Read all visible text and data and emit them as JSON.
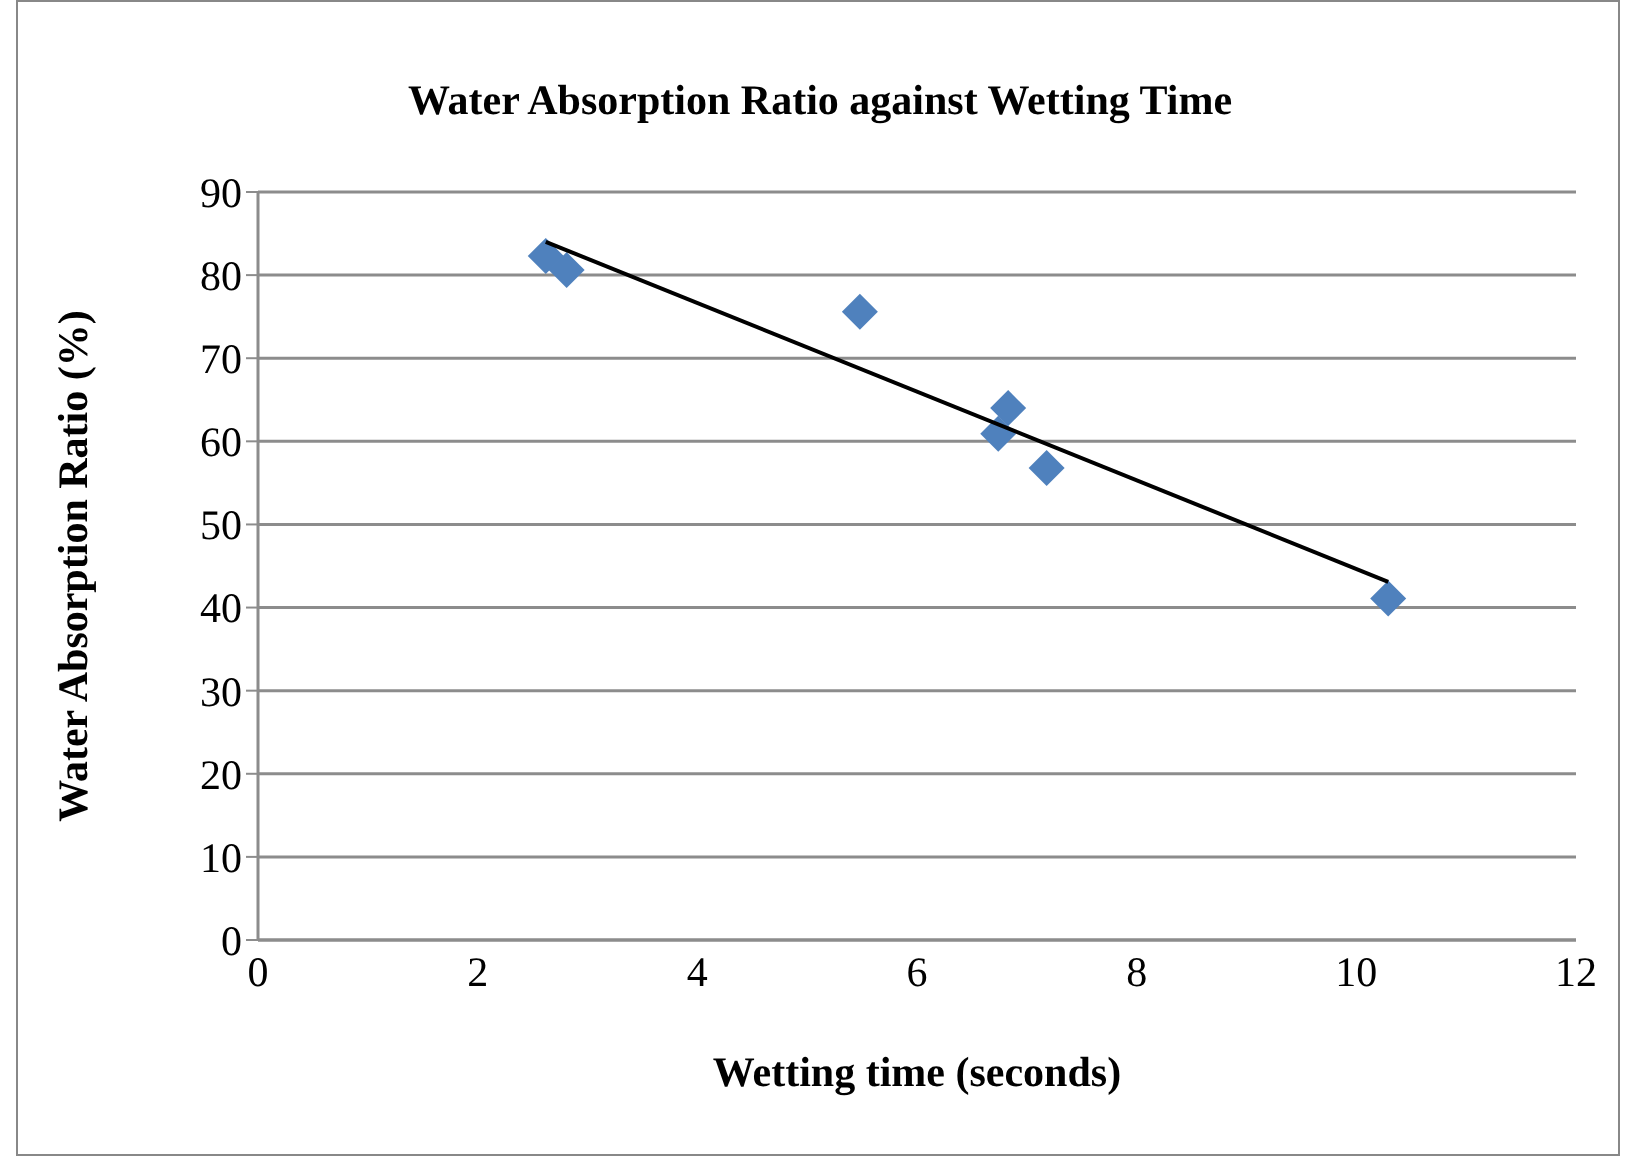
{
  "chart_data": {
    "type": "scatter",
    "title": "Water Absorption Ratio against Wetting Time",
    "xlabel": "Wetting time (seconds)",
    "ylabel": "Water Absorption Ratio (%)",
    "xlim": [
      0,
      12
    ],
    "xticks": [
      0,
      2,
      4,
      6,
      8,
      10,
      12
    ],
    "ylim": [
      0,
      90
    ],
    "yticks": [
      0,
      10,
      20,
      30,
      40,
      50,
      60,
      70,
      80,
      90
    ],
    "grid": "y",
    "legend": false,
    "series": [
      {
        "marker": "diamond",
        "color": "#4f81bd",
        "x": [
          2.62,
          2.81,
          5.48,
          6.83,
          6.74,
          7.18,
          10.29
        ],
        "values": [
          82.3,
          80.6,
          75.6,
          64.0,
          60.9,
          56.8,
          41.1
        ]
      },
      {
        "type": "line",
        "marker": "none",
        "line_style": "solid",
        "color": "#000000",
        "x": [
          2.62,
          10.29
        ],
        "values": [
          84.0,
          43.1
        ]
      }
    ]
  }
}
